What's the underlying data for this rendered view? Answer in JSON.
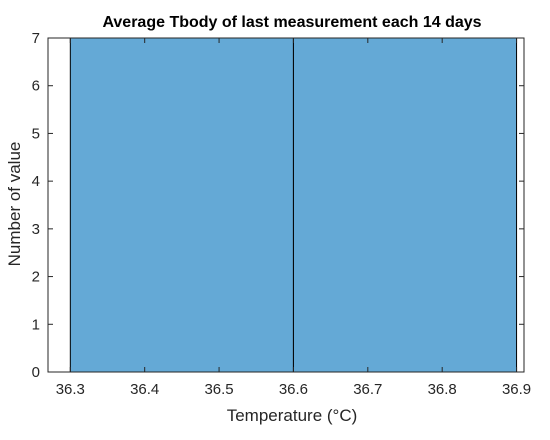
{
  "chart_data": {
    "type": "bar",
    "title": "Average Tbody of last measurement each 14 days",
    "xlabel": "Temperature (°C)",
    "ylabel": "Number of value",
    "xlim": [
      36.27,
      36.91
    ],
    "ylim": [
      0,
      7
    ],
    "x_ticks": [
      "36.3",
      "36.4",
      "36.5",
      "36.6",
      "36.7",
      "36.8",
      "36.9"
    ],
    "y_ticks": [
      "0",
      "1",
      "2",
      "3",
      "4",
      "5",
      "6",
      "7"
    ],
    "bins": [
      {
        "x_start": 36.3,
        "x_end": 36.6,
        "value": 7
      },
      {
        "x_start": 36.6,
        "x_end": 36.9,
        "value": 7
      }
    ],
    "grid": false,
    "bar_color": "#64a9d6",
    "edge_color": "#000000"
  }
}
